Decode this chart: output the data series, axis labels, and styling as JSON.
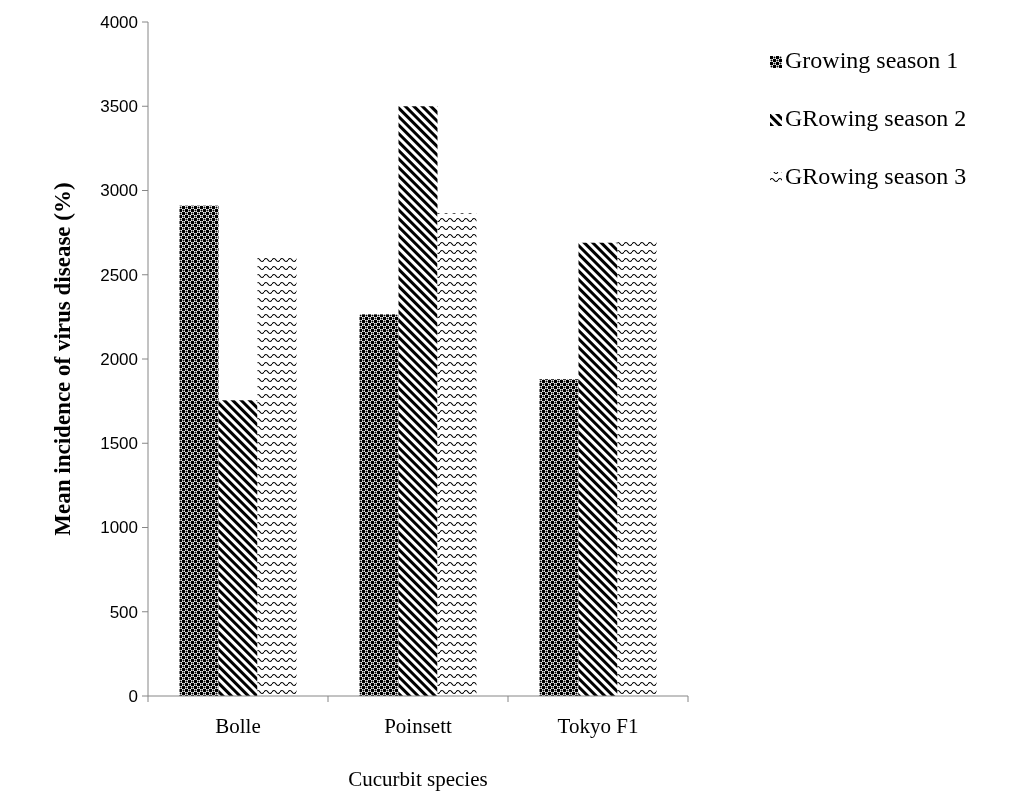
{
  "chart_data": {
    "type": "bar",
    "xlabel": "Cucurbit species",
    "ylabel": "Mean incidence of virus disease (%)",
    "categories": [
      "Bolle",
      "Poinsett",
      "Tokyo F1"
    ],
    "series": [
      {
        "name": "Growing season 1",
        "color": "#000000",
        "values": [
          2910,
          2265,
          1880
        ]
      },
      {
        "name": "GRowing season 2",
        "color": "#000000",
        "values": [
          1755,
          3500,
          2690
        ]
      },
      {
        "name": "GRowing season 3",
        "color": "#000000",
        "values": [
          2610,
          2865,
          2710
        ]
      }
    ],
    "ylim": [
      0,
      4000
    ],
    "yticks": [
      0,
      500,
      1000,
      1500,
      2000,
      2500,
      3000,
      3500,
      4000
    ],
    "grid": false,
    "legend": "top right"
  }
}
